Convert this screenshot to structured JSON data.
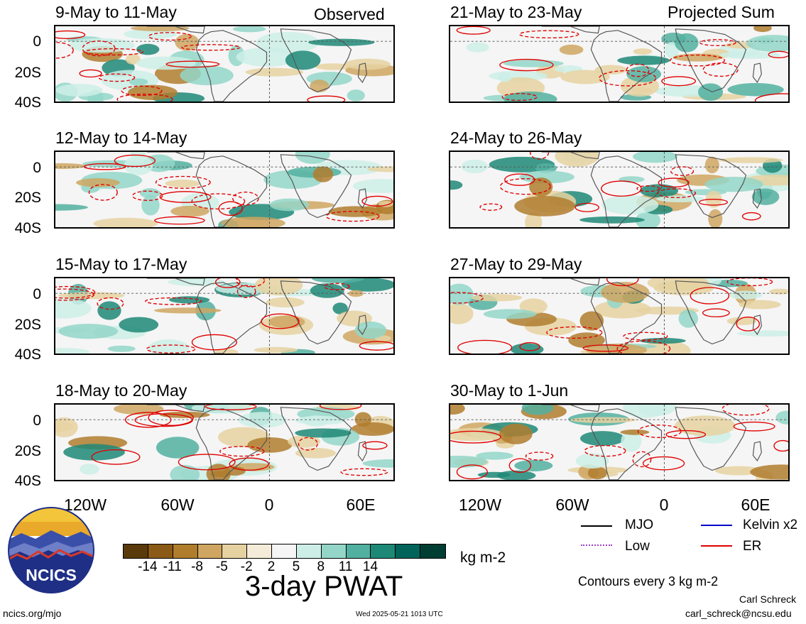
{
  "header": {
    "left_tag": "Observed",
    "right_tag": "Projected Sum"
  },
  "left_panels": [
    {
      "title": "9-May to 11-May"
    },
    {
      "title": "12-May to 14-May"
    },
    {
      "title": "15-May to 17-May"
    },
    {
      "title": "18-May to 20-May"
    }
  ],
  "right_panels": [
    {
      "title": "21-May to 23-May"
    },
    {
      "title": "24-May to 26-May"
    },
    {
      "title": "27-May to 29-May"
    },
    {
      "title": "30-May to 1-Jun"
    }
  ],
  "y_ticks": [
    "0",
    "20S",
    "40S"
  ],
  "x_ticks": [
    "120W",
    "60W",
    "0",
    "60E"
  ],
  "colorbar": {
    "labels": [
      "-14",
      "-11",
      "-8",
      "-5",
      "-2",
      "2",
      "5",
      "8",
      "11",
      "14"
    ],
    "colors": [
      "#5a3a0a",
      "#8b5a17",
      "#b07d2e",
      "#cfa661",
      "#e6d2a1",
      "#f4ecd9",
      "#f5f5f5",
      "#cdeee6",
      "#93d6c8",
      "#52b0a0",
      "#1e8877",
      "#00645a",
      "#003d33"
    ],
    "unit": "kg m-2",
    "title": "3-day PWAT"
  },
  "legend": {
    "items": [
      {
        "label": "MJO",
        "color": "#000000"
      },
      {
        "label": "Kelvin x2",
        "color": "#0000cc"
      },
      {
        "label": "Low",
        "color": "#a040c8"
      },
      {
        "label": "ER",
        "color": "#e00000"
      }
    ],
    "contours": "Contours every 3 kg m-2"
  },
  "credits": {
    "author": "Carl Schreck",
    "email": "carl_schreck@ncsu.edu",
    "site": "ncics.org/mjo",
    "timestamp": "Wed 2025-05-21 1013 UTC",
    "logo_text": "NCICS"
  }
}
